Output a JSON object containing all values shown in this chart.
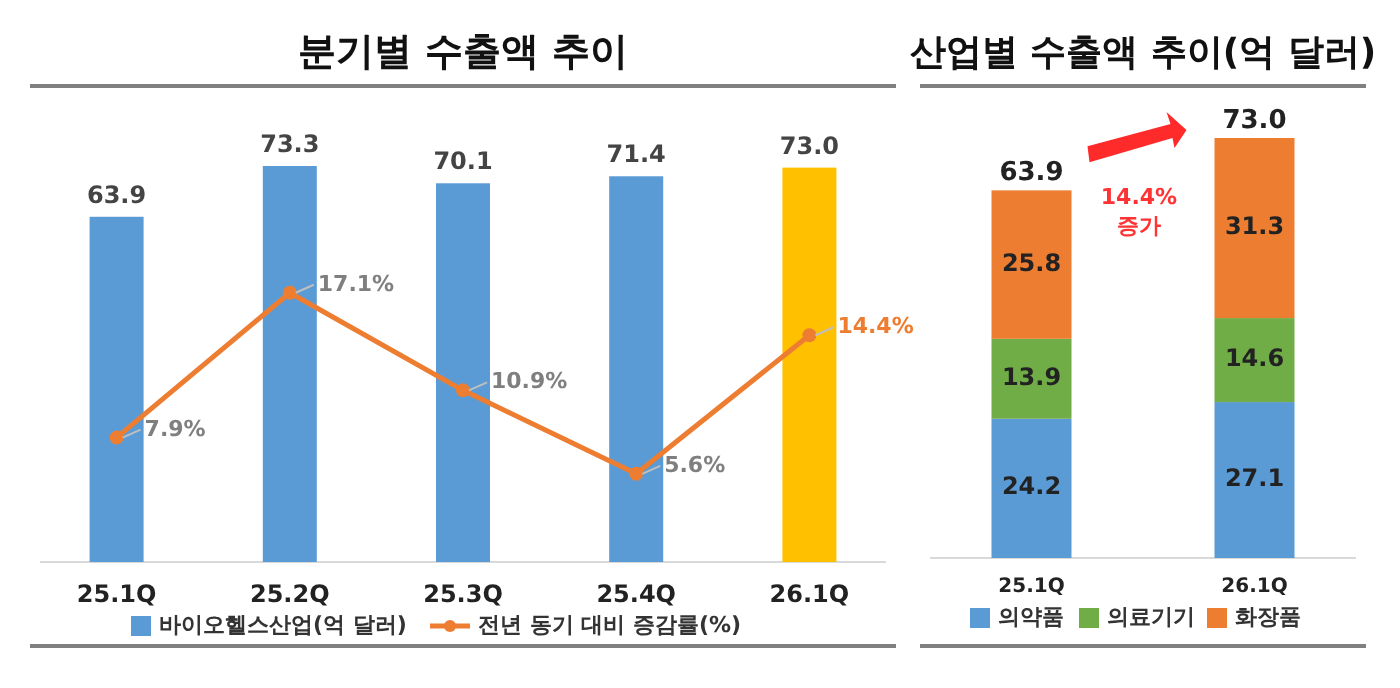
{
  "chart_data": [
    {
      "type": "bar",
      "title": "분기별 수출액 추이",
      "categories": [
        "25.1Q",
        "25.2Q",
        "25.3Q",
        "25.4Q",
        "26.1Q"
      ],
      "legend": "bottom",
      "marker": "circle",
      "series": [
        {
          "name": "바이오헬스산업(억 달러)",
          "color": "#5b9bd5",
          "colors": [
            "#5b9bd5",
            "#5b9bd5",
            "#5b9bd5",
            "#5b9bd5",
            "#ffc000"
          ],
          "values": [
            63.9,
            73.3,
            70.1,
            71.4,
            73.0
          ],
          "value_labels": [
            "63.9",
            "73.3",
            "70.1",
            "71.4",
            "73.0"
          ]
        },
        {
          "name": "전년 동기 대비 증감률(%)",
          "type": "line",
          "axis": "y2",
          "color": "#ed7d31",
          "values": [
            7.9,
            17.1,
            10.9,
            5.6,
            14.4
          ],
          "value_labels": [
            "7.9%",
            "17.1%",
            "10.9%",
            "5.6%",
            "14.4%"
          ]
        }
      ]
    },
    {
      "type": "bar",
      "stacked": true,
      "title": "산업별 수출액 추이(억 달러)",
      "categories": [
        "25.1Q",
        "26.1Q"
      ],
      "legend": "bottom",
      "totals": [
        "63.9",
        "73.0"
      ],
      "annotations": [
        "14.4%\n증가"
      ],
      "series": [
        {
          "name": "의약품",
          "color": "#5b9bd5",
          "values": [
            24.2,
            27.1
          ],
          "value_labels": [
            "24.2",
            "27.1"
          ]
        },
        {
          "name": "의료기기",
          "color": "#70ad47",
          "values": [
            13.9,
            14.6
          ],
          "value_labels": [
            "13.9",
            "14.6"
          ]
        },
        {
          "name": "화장품",
          "color": "#ed7d31",
          "values": [
            25.8,
            31.3
          ],
          "value_labels": [
            "25.8",
            "31.3"
          ]
        }
      ]
    }
  ]
}
